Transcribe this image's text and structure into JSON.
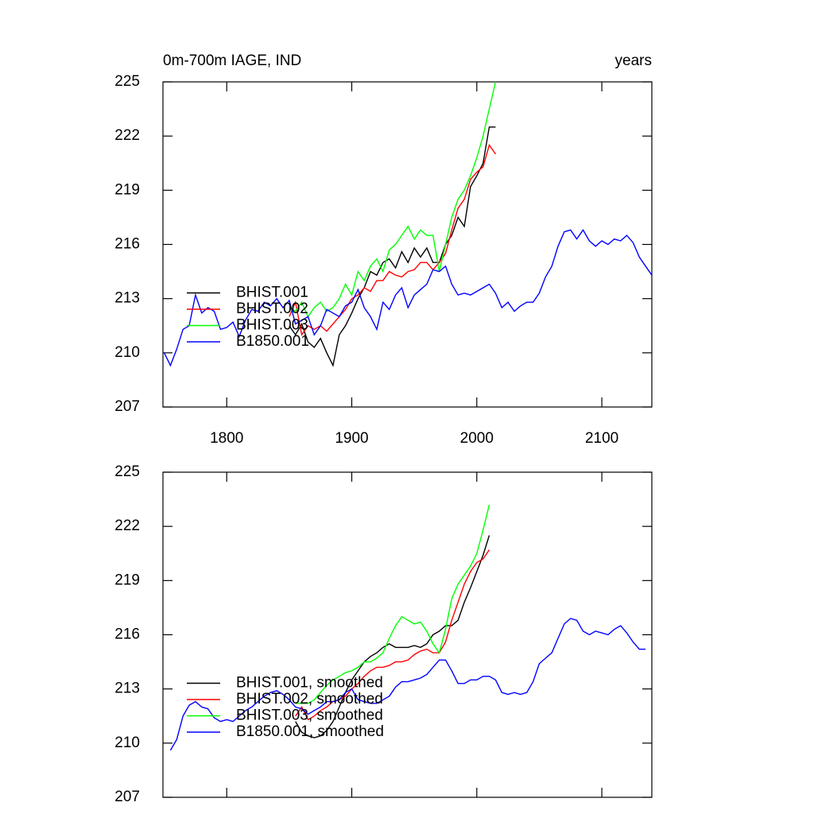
{
  "chart_data": [
    {
      "type": "line",
      "title": "0m-700m IAGE, IND",
      "units_label": "years",
      "xlim": [
        1749,
        2140
      ],
      "xticks": [
        1800,
        1900,
        2000,
        2100
      ],
      "ylim": [
        207,
        225
      ],
      "yticks": [
        207,
        210,
        213,
        216,
        219,
        222,
        225
      ],
      "legend": "lower-left",
      "x": [
        1750,
        1755,
        1760,
        1765,
        1770,
        1775,
        1780,
        1785,
        1790,
        1795,
        1800,
        1805,
        1810,
        1815,
        1820,
        1825,
        1830,
        1835,
        1840,
        1845,
        1850,
        1855,
        1860,
        1865,
        1870,
        1875,
        1880,
        1885,
        1890,
        1895,
        1900,
        1905,
        1910,
        1915,
        1920,
        1925,
        1930,
        1935,
        1940,
        1945,
        1950,
        1955,
        1960,
        1965,
        1970,
        1975,
        1980,
        1985,
        1990,
        1995,
        2000,
        2005,
        2010,
        2015,
        2020,
        2025,
        2030,
        2035,
        2040,
        2045,
        2050,
        2055,
        2060,
        2065,
        2070,
        2075,
        2080,
        2085,
        2090,
        2095,
        2100,
        2105,
        2110,
        2115,
        2120,
        2125,
        2130,
        2135,
        2140
      ],
      "series": [
        {
          "name": "BHIST.001",
          "color": "#000000",
          "values": [
            null,
            null,
            null,
            null,
            null,
            null,
            null,
            null,
            null,
            null,
            null,
            null,
            null,
            null,
            null,
            null,
            null,
            null,
            null,
            null,
            211.5,
            211.0,
            211.6,
            210.6,
            210.3,
            210.8,
            210.0,
            209.3,
            211.0,
            211.5,
            212.2,
            213.0,
            213.6,
            214.5,
            214.3,
            215.0,
            215.2,
            214.7,
            215.6,
            215.0,
            215.8,
            215.3,
            215.8,
            215.0,
            215.0,
            216.0,
            216.5,
            217.5,
            217.0,
            219.2,
            219.8,
            220.5,
            222.5,
            222.5,
            null,
            null,
            null,
            null,
            null,
            null,
            null,
            null,
            null,
            null,
            null,
            null,
            null,
            null,
            null,
            null,
            null,
            null,
            null,
            null,
            null,
            null,
            null,
            null,
            null
          ]
        },
        {
          "name": "BHIST.002",
          "color": "#ff0000",
          "values": [
            null,
            null,
            null,
            null,
            null,
            null,
            null,
            null,
            null,
            null,
            null,
            null,
            null,
            null,
            null,
            null,
            null,
            null,
            null,
            null,
            212.0,
            212.8,
            211.0,
            211.5,
            211.3,
            211.5,
            211.2,
            211.6,
            212.0,
            212.4,
            213.0,
            213.2,
            213.6,
            213.4,
            214.0,
            214.0,
            214.5,
            214.3,
            214.2,
            214.5,
            214.6,
            215.0,
            215.0,
            214.6,
            215.0,
            215.5,
            216.8,
            218.0,
            218.5,
            219.6,
            220.0,
            220.3,
            221.5,
            221.0,
            null,
            null,
            null,
            null,
            null,
            null,
            null,
            null,
            null,
            null,
            null,
            null,
            null,
            null,
            null,
            null,
            null,
            null,
            null,
            null,
            null,
            null,
            null,
            null,
            null
          ]
        },
        {
          "name": "BHIST.003",
          "color": "#00ff00",
          "values": [
            null,
            null,
            null,
            null,
            null,
            null,
            null,
            null,
            null,
            null,
            null,
            null,
            null,
            null,
            null,
            null,
            null,
            null,
            null,
            null,
            212.5,
            212.3,
            212.8,
            212.0,
            212.5,
            212.8,
            212.3,
            212.5,
            213.0,
            213.8,
            213.2,
            214.5,
            214.0,
            214.8,
            215.2,
            214.5,
            215.7,
            216.0,
            216.5,
            217.0,
            216.3,
            216.8,
            216.5,
            216.5,
            214.5,
            216.0,
            217.5,
            218.5,
            219.0,
            219.8,
            220.8,
            222.0,
            223.5,
            225.0,
            null,
            null,
            null,
            null,
            null,
            null,
            null,
            null,
            null,
            null,
            null,
            null,
            null,
            null,
            null,
            null,
            null,
            null,
            null,
            null,
            null,
            null,
            null,
            null,
            null
          ]
        },
        {
          "name": "B1850.001",
          "color": "#0000ff",
          "values": [
            210.0,
            209.3,
            210.2,
            211.3,
            211.5,
            213.2,
            212.2,
            212.5,
            212.3,
            211.3,
            211.4,
            211.7,
            210.9,
            211.8,
            212.4,
            212.3,
            212.8,
            212.6,
            213.0,
            212.5,
            212.9,
            211.6,
            211.8,
            212.0,
            211.0,
            211.5,
            212.4,
            212.2,
            212.0,
            212.6,
            212.8,
            213.5,
            212.5,
            212.0,
            211.3,
            212.8,
            212.4,
            213.2,
            213.6,
            212.5,
            213.2,
            213.5,
            213.8,
            214.6,
            214.5,
            214.8,
            213.8,
            213.2,
            213.3,
            213.2,
            213.4,
            213.6,
            213.8,
            213.3,
            212.5,
            212.8,
            212.3,
            212.6,
            212.8,
            212.8,
            213.3,
            214.2,
            214.8,
            215.9,
            216.7,
            216.8,
            216.3,
            216.8,
            216.2,
            215.9,
            216.2,
            216.0,
            216.3,
            216.2,
            216.5,
            216.1,
            215.3,
            214.8,
            214.3
          ]
        }
      ]
    },
    {
      "type": "line",
      "xlim": [
        1749,
        2140
      ],
      "xticks": [
        1800,
        1900,
        2000,
        2100
      ],
      "ylim": [
        207,
        225
      ],
      "yticks": [
        207,
        210,
        213,
        216,
        219,
        222,
        225
      ],
      "legend": "lower-left",
      "x": [
        1750,
        1755,
        1760,
        1765,
        1770,
        1775,
        1780,
        1785,
        1790,
        1795,
        1800,
        1805,
        1810,
        1815,
        1820,
        1825,
        1830,
        1835,
        1840,
        1845,
        1850,
        1855,
        1860,
        1865,
        1870,
        1875,
        1880,
        1885,
        1890,
        1895,
        1900,
        1905,
        1910,
        1915,
        1920,
        1925,
        1930,
        1935,
        1940,
        1945,
        1950,
        1955,
        1960,
        1965,
        1970,
        1975,
        1980,
        1985,
        1990,
        1995,
        2000,
        2005,
        2010,
        2015,
        2020,
        2025,
        2030,
        2035,
        2040,
        2045,
        2050,
        2055,
        2060,
        2065,
        2070,
        2075,
        2080,
        2085,
        2090,
        2095,
        2100,
        2105,
        2110,
        2115,
        2120,
        2125,
        2130,
        2135,
        2140
      ],
      "series": [
        {
          "name": "BHIST.001, smoothed",
          "color": "#000000",
          "values": [
            null,
            null,
            null,
            null,
            null,
            null,
            null,
            null,
            null,
            null,
            null,
            null,
            null,
            null,
            null,
            null,
            null,
            null,
            null,
            null,
            null,
            211.2,
            210.6,
            210.4,
            210.3,
            210.4,
            210.7,
            211.2,
            212.0,
            212.8,
            213.5,
            214.0,
            214.5,
            214.8,
            215.0,
            215.3,
            215.5,
            215.3,
            215.3,
            215.3,
            215.4,
            215.3,
            215.5,
            216.0,
            216.2,
            216.5,
            216.5,
            216.8,
            217.8,
            218.6,
            219.5,
            220.4,
            221.5,
            null,
            null,
            null,
            null,
            null,
            null,
            null,
            null,
            null,
            null,
            null,
            null,
            null,
            null,
            null,
            null,
            null,
            null,
            null,
            null,
            null,
            null,
            null,
            null,
            null,
            null
          ]
        },
        {
          "name": "BHIST.002, smoothed",
          "color": "#ff0000",
          "values": [
            null,
            null,
            null,
            null,
            null,
            null,
            null,
            null,
            null,
            null,
            null,
            null,
            null,
            null,
            null,
            null,
            null,
            null,
            null,
            null,
            null,
            211.5,
            212.0,
            211.3,
            211.5,
            211.8,
            212.0,
            212.3,
            212.4,
            212.6,
            213.0,
            213.3,
            213.7,
            214.0,
            214.2,
            214.2,
            214.3,
            214.5,
            214.5,
            214.6,
            214.9,
            215.1,
            215.2,
            215.0,
            215.0,
            215.6,
            216.8,
            217.8,
            218.8,
            219.5,
            220.0,
            220.2,
            220.7,
            null,
            null,
            null,
            null,
            null,
            null,
            null,
            null,
            null,
            null,
            null,
            null,
            null,
            null,
            null,
            null,
            null,
            null,
            null,
            null,
            null,
            null,
            null,
            null,
            null,
            null
          ]
        },
        {
          "name": "BHIST.003, smoothed",
          "color": "#00ff00",
          "values": [
            null,
            null,
            null,
            null,
            null,
            null,
            null,
            null,
            null,
            null,
            null,
            null,
            null,
            null,
            null,
            null,
            null,
            null,
            null,
            null,
            null,
            212.2,
            212.2,
            212.2,
            212.4,
            212.8,
            213.2,
            213.5,
            213.7,
            213.9,
            214.0,
            214.2,
            214.5,
            214.5,
            214.7,
            215.0,
            215.8,
            216.5,
            217.0,
            216.8,
            216.6,
            216.7,
            216.2,
            215.5,
            215.0,
            216.3,
            218.0,
            218.8,
            219.3,
            219.8,
            220.5,
            221.8,
            223.2,
            null,
            null,
            null,
            null,
            null,
            null,
            null,
            null,
            null,
            null,
            null,
            null,
            null,
            null,
            null,
            null,
            null,
            null,
            null,
            null,
            null,
            null,
            null,
            null,
            null,
            null
          ]
        },
        {
          "name": "B1850.001, smoothed",
          "color": "#0000ff",
          "values": [
            null,
            209.6,
            210.2,
            211.5,
            212.1,
            212.3,
            212.0,
            211.9,
            211.4,
            211.2,
            211.3,
            211.2,
            211.5,
            211.8,
            212.0,
            212.3,
            212.6,
            212.8,
            212.9,
            212.7,
            212.4,
            212.0,
            211.9,
            211.6,
            211.8,
            212.0,
            212.3,
            212.3,
            212.4,
            212.8,
            213.0,
            212.4,
            212.3,
            212.2,
            212.2,
            212.4,
            212.6,
            213.1,
            213.4,
            213.4,
            213.5,
            213.6,
            213.8,
            214.2,
            214.6,
            214.6,
            214.0,
            213.3,
            213.3,
            213.5,
            213.5,
            213.7,
            213.7,
            213.5,
            212.8,
            212.7,
            212.8,
            212.7,
            212.8,
            213.4,
            214.4,
            214.7,
            215.0,
            215.8,
            216.6,
            216.9,
            216.8,
            216.2,
            216.0,
            216.2,
            216.1,
            216.0,
            216.3,
            216.5,
            216.1,
            215.6,
            215.2,
            215.2,
            null
          ]
        }
      ]
    }
  ]
}
